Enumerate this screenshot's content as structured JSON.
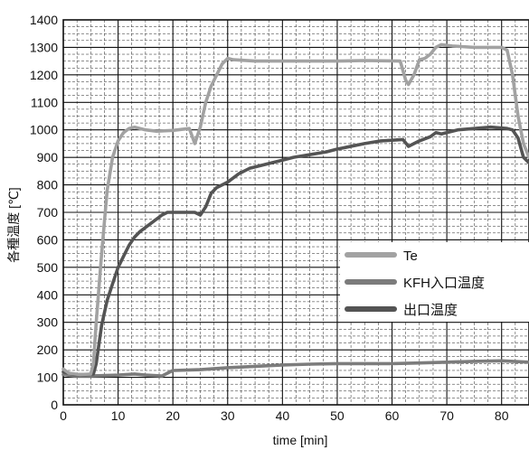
{
  "chart_data": {
    "type": "line",
    "title": "",
    "xlabel": "time [min]",
    "ylabel": "各種温度 [℃]",
    "xlim": [
      0,
      85
    ],
    "ylim": [
      0,
      1400
    ],
    "x_ticks": [
      0,
      10,
      20,
      30,
      40,
      50,
      60,
      70,
      80
    ],
    "y_ticks": [
      0,
      100,
      200,
      300,
      400,
      500,
      600,
      700,
      800,
      900,
      1000,
      1100,
      1200,
      1300,
      1400
    ],
    "grid": true,
    "legend_position": "center-right",
    "series": [
      {
        "name": "Te",
        "color": "#a2a2a2",
        "points": [
          [
            0,
            130
          ],
          [
            1,
            115
          ],
          [
            3,
            110
          ],
          [
            5,
            112
          ],
          [
            5.5,
            150
          ],
          [
            6,
            300
          ],
          [
            7,
            550
          ],
          [
            8,
            780
          ],
          [
            9,
            900
          ],
          [
            10,
            960
          ],
          [
            11,
            990
          ],
          [
            12,
            1005
          ],
          [
            13,
            1010
          ],
          [
            15,
            1000
          ],
          [
            17,
            995
          ],
          [
            20,
            998
          ],
          [
            23,
            1005
          ],
          [
            24,
            950
          ],
          [
            25,
            1010
          ],
          [
            26,
            1100
          ],
          [
            27,
            1160
          ],
          [
            28,
            1200
          ],
          [
            29,
            1240
          ],
          [
            30,
            1260
          ],
          [
            31,
            1255
          ],
          [
            35,
            1250
          ],
          [
            40,
            1250
          ],
          [
            45,
            1250
          ],
          [
            50,
            1250
          ],
          [
            55,
            1252
          ],
          [
            61.5,
            1250
          ],
          [
            62.5,
            1180
          ],
          [
            63,
            1165
          ],
          [
            64,
            1200
          ],
          [
            65,
            1255
          ],
          [
            66,
            1260
          ],
          [
            67,
            1275
          ],
          [
            68,
            1300
          ],
          [
            69,
            1310
          ],
          [
            71,
            1305
          ],
          [
            75,
            1300
          ],
          [
            80,
            1300
          ],
          [
            81,
            1290
          ],
          [
            82,
            1200
          ],
          [
            83,
            1050
          ],
          [
            84,
            950
          ],
          [
            85,
            900
          ]
        ]
      },
      {
        "name": "KFH入口温度",
        "color": "#7c7c7c",
        "points": [
          [
            0,
            110
          ],
          [
            2,
            105
          ],
          [
            5,
            105
          ],
          [
            10,
            108
          ],
          [
            13,
            112
          ],
          [
            15,
            108
          ],
          [
            18,
            105
          ],
          [
            19,
            115
          ],
          [
            20,
            125
          ],
          [
            25,
            128
          ],
          [
            30,
            135
          ],
          [
            35,
            140
          ],
          [
            40,
            145
          ],
          [
            45,
            148
          ],
          [
            50,
            150
          ],
          [
            55,
            150
          ],
          [
            60,
            150
          ],
          [
            65,
            152
          ],
          [
            70,
            155
          ],
          [
            75,
            158
          ],
          [
            80,
            160
          ],
          [
            85,
            155
          ]
        ]
      },
      {
        "name": "出口温度",
        "color": "#545454",
        "points": [
          [
            0,
            120
          ],
          [
            2,
            110
          ],
          [
            4,
            110
          ],
          [
            5.5,
            112
          ],
          [
            6,
            150
          ],
          [
            7,
            290
          ],
          [
            8,
            380
          ],
          [
            9,
            440
          ],
          [
            10,
            500
          ],
          [
            11,
            540
          ],
          [
            12,
            580
          ],
          [
            13,
            610
          ],
          [
            14,
            630
          ],
          [
            15,
            645
          ],
          [
            16,
            660
          ],
          [
            17,
            675
          ],
          [
            18,
            690
          ],
          [
            19,
            700
          ],
          [
            20,
            700
          ],
          [
            24,
            700
          ],
          [
            25,
            690
          ],
          [
            26,
            720
          ],
          [
            27,
            770
          ],
          [
            28,
            790
          ],
          [
            29,
            800
          ],
          [
            30,
            810
          ],
          [
            32,
            840
          ],
          [
            34,
            860
          ],
          [
            36,
            870
          ],
          [
            38,
            880
          ],
          [
            40,
            890
          ],
          [
            42,
            900
          ],
          [
            45,
            910
          ],
          [
            48,
            920
          ],
          [
            50,
            930
          ],
          [
            55,
            950
          ],
          [
            58,
            960
          ],
          [
            62,
            965
          ],
          [
            63,
            940
          ],
          [
            64,
            950
          ],
          [
            65,
            960
          ],
          [
            67,
            975
          ],
          [
            68,
            990
          ],
          [
            69,
            985
          ],
          [
            70,
            990
          ],
          [
            72,
            1000
          ],
          [
            75,
            1005
          ],
          [
            78,
            1010
          ],
          [
            81,
            1005
          ],
          [
            82,
            1000
          ],
          [
            83,
            970
          ],
          [
            84,
            900
          ],
          [
            85,
            880
          ]
        ]
      }
    ]
  }
}
